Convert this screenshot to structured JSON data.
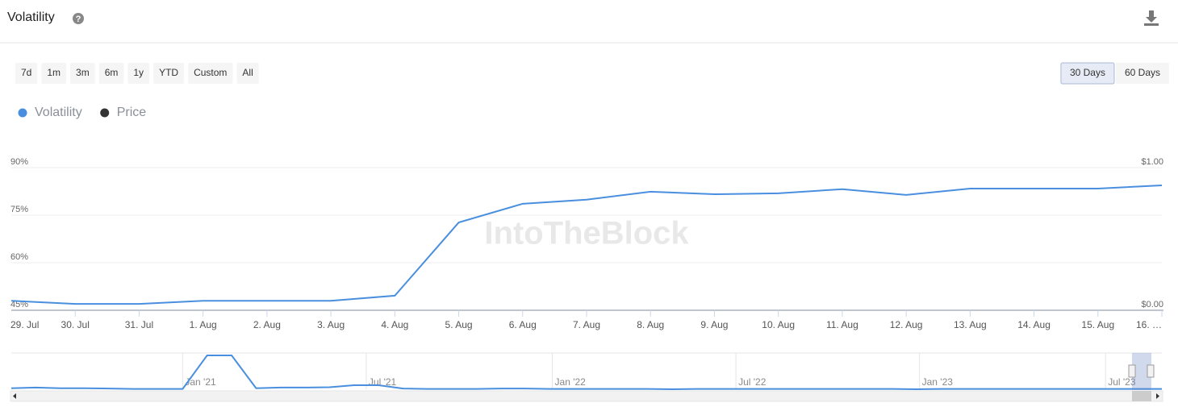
{
  "chart_data": {
    "type": "line",
    "title": "Volatility",
    "watermark": "IntoTheBlock",
    "range_buttons": [
      "7d",
      "1m",
      "3m",
      "6m",
      "1y",
      "YTD",
      "Custom",
      "All"
    ],
    "period_buttons": [
      "30 Days",
      "60 Days"
    ],
    "selected_period": 0,
    "categories": [
      "29. Jul",
      "30. Jul",
      "31. Jul",
      "1. Aug",
      "2. Aug",
      "3. Aug",
      "4. Aug",
      "5. Aug",
      "6. Aug",
      "7. Aug",
      "8. Aug",
      "9. Aug",
      "10. Aug",
      "11. Aug",
      "12. Aug",
      "13. Aug",
      "14. Aug",
      "15. Aug",
      "16. …"
    ],
    "series": [
      {
        "name": "Volatility",
        "color": "#4a8fdf",
        "values": [
          48.0,
          47.0,
          47.0,
          48.0,
          48.0,
          48.0,
          49.6,
          72.7,
          78.6,
          79.9,
          82.4,
          81.6,
          81.9,
          83.2,
          81.4,
          83.4,
          83.4,
          83.4,
          84.4
        ]
      },
      {
        "name": "Price",
        "color": "#333333",
        "axis": "y2",
        "values": [
          null,
          null,
          null,
          null,
          null,
          null,
          null,
          null,
          null,
          null,
          null,
          null,
          null,
          null,
          null,
          null,
          null,
          null,
          null
        ]
      }
    ],
    "ylim": [
      45,
      90
    ],
    "yticks": [
      {
        "value": 45,
        "label": "45%"
      },
      {
        "value": 60,
        "label": "60%"
      },
      {
        "value": 75,
        "label": "75%"
      },
      {
        "value": 90,
        "label": "90%"
      }
    ],
    "y2lim": [
      0,
      1
    ],
    "y2ticks": [
      {
        "value": 0,
        "label": "$0.00"
      },
      {
        "value": 1,
        "label": "$1.00"
      }
    ],
    "grid": true,
    "navigator": {
      "xlim": [
        0,
        47
      ],
      "ylim": [
        0,
        100
      ],
      "xticks": [
        {
          "value": 7.0,
          "label": "Jan '21"
        },
        {
          "value": 14.5,
          "label": "Jul '21"
        },
        {
          "value": 22.1,
          "label": "Jan '22"
        },
        {
          "value": 29.6,
          "label": "Jul '22"
        },
        {
          "value": 37.1,
          "label": "Jan '23"
        },
        {
          "value": 44.7,
          "label": "Jul '23"
        }
      ],
      "values": [
        3,
        5,
        3,
        3,
        2,
        1,
        1,
        1,
        100,
        100,
        3,
        5,
        5,
        6,
        12,
        12,
        2,
        1,
        1,
        1,
        2,
        2,
        1,
        1,
        1,
        1,
        1,
        0,
        1,
        1,
        1,
        1,
        1,
        1,
        1,
        1,
        1,
        0,
        1,
        1,
        1,
        1,
        1,
        1,
        1,
        1,
        1,
        1
      ]
    }
  }
}
